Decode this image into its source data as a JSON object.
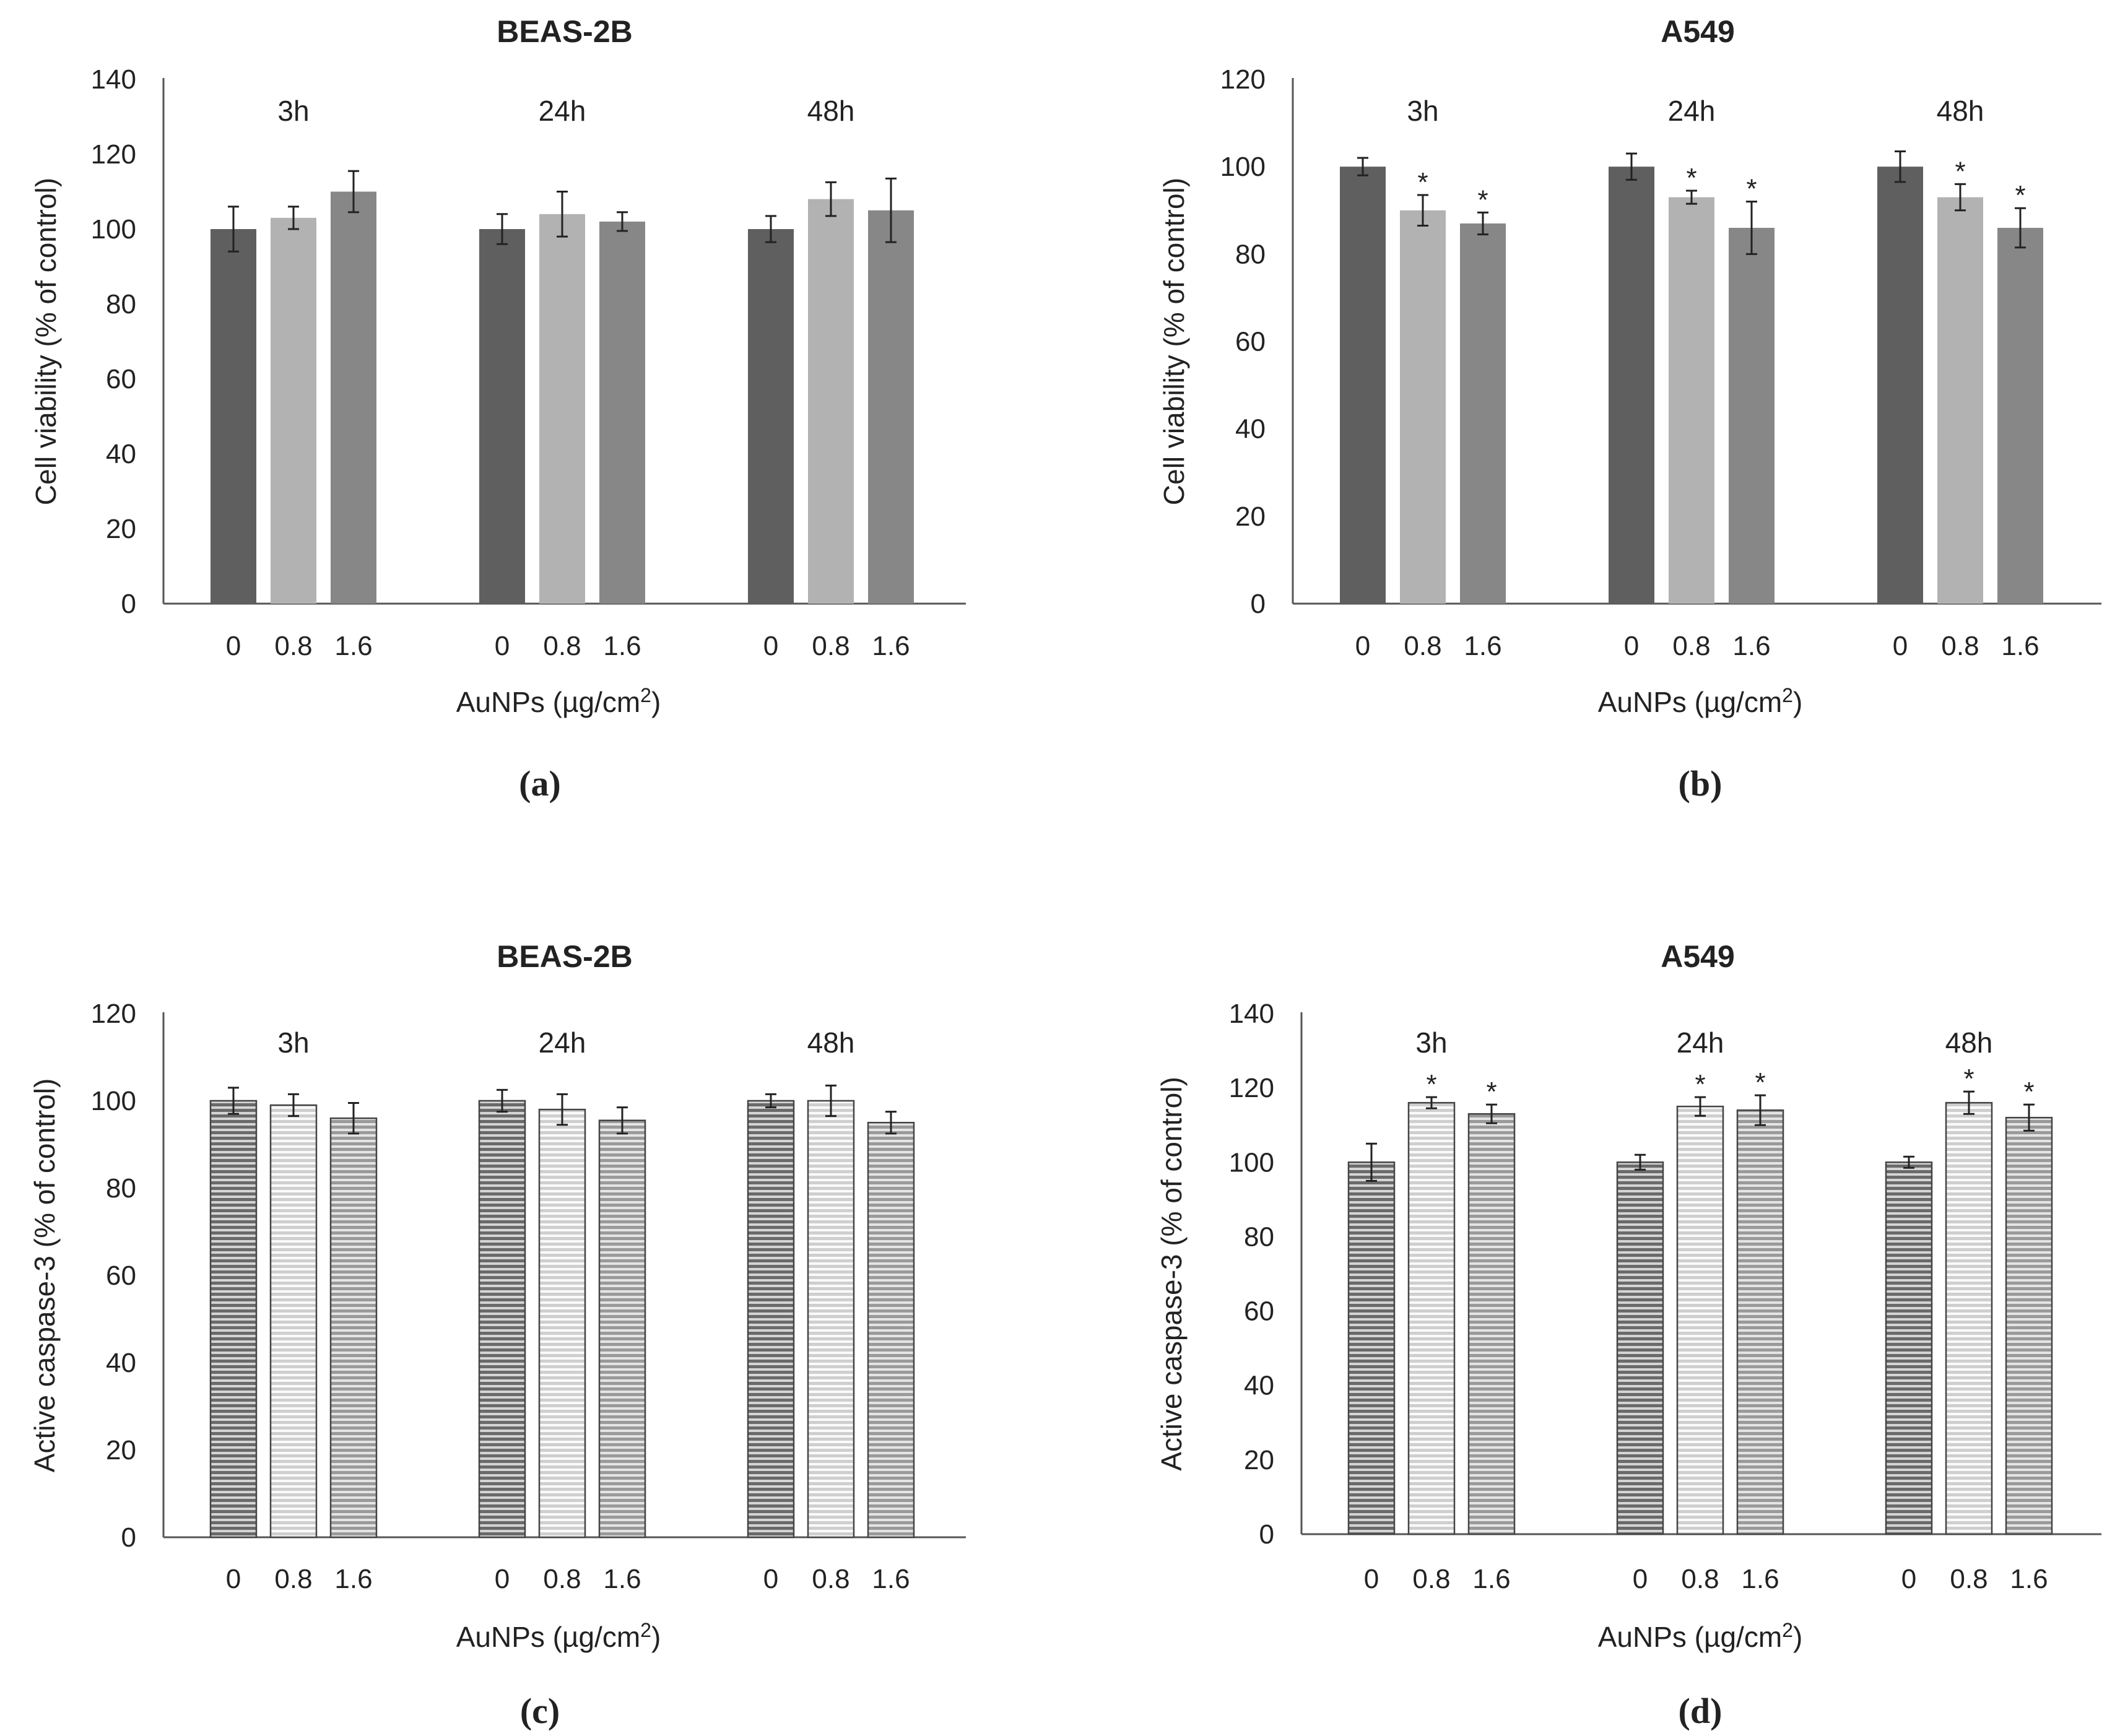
{
  "chart_data": [
    {
      "panel": "(a)",
      "type": "bar",
      "title": "BEAS-2B",
      "ylabel": "Cell viability (% of control)",
      "xlabel": "AuNPs (µg/cm",
      "xlabel_sup": "2",
      "xlabel_end": ")",
      "ylim": [
        0,
        140
      ],
      "yticks": [
        0,
        20,
        40,
        60,
        80,
        100,
        120,
        140
      ],
      "fill": "solid",
      "groups": [
        {
          "label": "3h",
          "categories": [
            "0",
            "0.8",
            "1.6"
          ],
          "values": [
            100,
            103,
            110
          ],
          "errors": [
            6,
            3,
            5.5
          ],
          "significant": [
            false,
            false,
            false
          ]
        },
        {
          "label": "24h",
          "categories": [
            "0",
            "0.8",
            "1.6"
          ],
          "values": [
            100,
            104,
            102
          ],
          "errors": [
            4,
            6,
            2.5
          ],
          "significant": [
            false,
            false,
            false
          ]
        },
        {
          "label": "48h",
          "categories": [
            "0",
            "0.8",
            "1.6"
          ],
          "values": [
            100,
            108,
            105
          ],
          "errors": [
            3.5,
            4.5,
            8.5
          ],
          "significant": [
            false,
            false,
            false
          ]
        }
      ],
      "colors": [
        "#5f5f5f",
        "#b2b2b2",
        "#878787"
      ]
    },
    {
      "panel": "(b)",
      "type": "bar",
      "title": "A549",
      "ylabel": "Cell viability (% of control)",
      "xlabel": "AuNPs (µg/cm",
      "xlabel_sup": "2",
      "xlabel_end": ")",
      "ylim": [
        0,
        120
      ],
      "yticks": [
        0,
        20,
        40,
        60,
        80,
        100,
        120
      ],
      "fill": "solid",
      "groups": [
        {
          "label": "3h",
          "categories": [
            "0",
            "0.8",
            "1.6"
          ],
          "values": [
            100,
            90,
            87
          ],
          "errors": [
            2,
            3.5,
            2.5
          ],
          "significant": [
            false,
            true,
            true
          ]
        },
        {
          "label": "24h",
          "categories": [
            "0",
            "0.8",
            "1.6"
          ],
          "values": [
            100,
            93,
            86
          ],
          "errors": [
            3,
            1.5,
            6
          ],
          "significant": [
            false,
            true,
            true
          ]
        },
        {
          "label": "48h",
          "categories": [
            "0",
            "0.8",
            "1.6"
          ],
          "values": [
            100,
            93,
            86
          ],
          "errors": [
            3.5,
            3,
            4.5
          ],
          "significant": [
            false,
            true,
            true
          ]
        }
      ],
      "colors": [
        "#5f5f5f",
        "#b2b2b2",
        "#878787"
      ]
    },
    {
      "panel": "(c)",
      "type": "bar",
      "title": "BEAS-2B",
      "ylabel": "Active caspase-3 (% of control)",
      "xlabel": "AuNPs (µg/cm",
      "xlabel_sup": "2",
      "xlabel_end": ")",
      "ylim": [
        0,
        120
      ],
      "yticks": [
        0,
        20,
        40,
        60,
        80,
        100,
        120
      ],
      "fill": "striped",
      "groups": [
        {
          "label": "3h",
          "categories": [
            "0",
            "0.8",
            "1.6"
          ],
          "values": [
            100,
            99,
            96
          ],
          "errors": [
            3,
            2.5,
            3.5
          ],
          "significant": [
            false,
            false,
            false
          ]
        },
        {
          "label": "24h",
          "categories": [
            "0",
            "0.8",
            "1.6"
          ],
          "values": [
            100,
            98,
            95.5
          ],
          "errors": [
            2.5,
            3.5,
            3
          ],
          "significant": [
            false,
            false,
            false
          ]
        },
        {
          "label": "48h",
          "categories": [
            "0",
            "0.8",
            "1.6"
          ],
          "values": [
            100,
            100,
            95
          ],
          "errors": [
            1.5,
            3.5,
            2.5
          ],
          "significant": [
            false,
            false,
            false
          ]
        }
      ],
      "colors": [
        "#6a6a6a",
        "#c9c9c9",
        "#9a9a9a"
      ]
    },
    {
      "panel": "(d)",
      "type": "bar",
      "title": "A549",
      "ylabel": "Active caspase-3 (% of control)",
      "xlabel": "AuNPs (µg/cm",
      "xlabel_sup": "2",
      "xlabel_end": ")",
      "ylim": [
        0,
        140
      ],
      "yticks": [
        0,
        20,
        40,
        60,
        80,
        100,
        120,
        140
      ],
      "fill": "striped",
      "groups": [
        {
          "label": "3h",
          "categories": [
            "0",
            "0.8",
            "1.6"
          ],
          "values": [
            100,
            116,
            113
          ],
          "errors": [
            5,
            1.5,
            2.5
          ],
          "significant": [
            false,
            true,
            true
          ]
        },
        {
          "label": "24h",
          "categories": [
            "0",
            "0.8",
            "1.6"
          ],
          "values": [
            100,
            115,
            114
          ],
          "errors": [
            2,
            2.5,
            4
          ],
          "significant": [
            false,
            true,
            true
          ]
        },
        {
          "label": "48h",
          "categories": [
            "0",
            "0.8",
            "1.6"
          ],
          "values": [
            100,
            116,
            112
          ],
          "errors": [
            1.5,
            3,
            3.5
          ],
          "significant": [
            false,
            true,
            true
          ]
        }
      ],
      "colors": [
        "#6a6a6a",
        "#c9c9c9",
        "#9a9a9a"
      ]
    }
  ],
  "significance_marker": "*"
}
